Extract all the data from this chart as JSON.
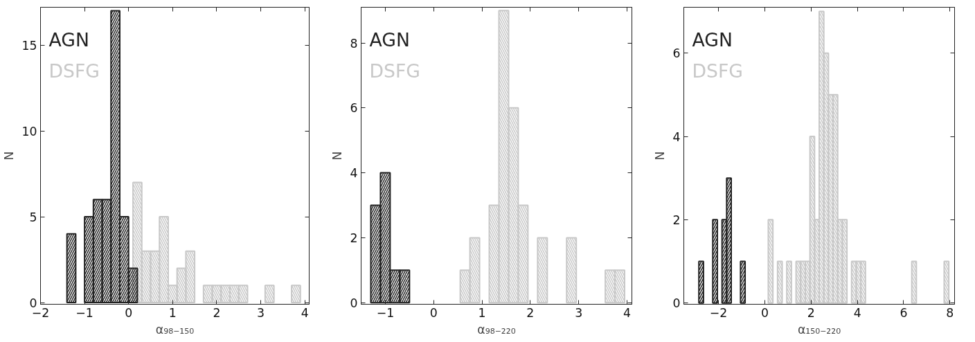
{
  "chart_data": [
    {
      "type": "bar",
      "xlabel": "α₉₈₋₁₅₀",
      "ylabel": "N",
      "xlim": [
        -2,
        4.1
      ],
      "ylim": [
        -0.1,
        17.2
      ],
      "xticks": [
        -2,
        -1,
        0,
        1,
        2,
        3,
        4
      ],
      "yticks": [
        0,
        5,
        10,
        15
      ],
      "legend": "top left",
      "series": [
        {
          "name": "AGN",
          "color": "#222222",
          "x": [
            -1.3,
            -0.9,
            -0.7,
            -0.5,
            -0.3,
            -0.1,
            0.1
          ],
          "values": [
            4,
            5,
            6,
            6,
            17,
            5,
            2
          ]
        },
        {
          "name": "DSFG",
          "color": "#c8c8c8",
          "x": [
            0.2,
            0.4,
            0.6,
            0.8,
            1.0,
            1.2,
            1.4,
            1.8,
            2.0,
            2.2,
            2.4,
            2.6,
            3.2,
            3.8
          ],
          "values": [
            7,
            3,
            3,
            5,
            1,
            2,
            3,
            1,
            1,
            1,
            1,
            1,
            1,
            1
          ]
        }
      ]
    },
    {
      "type": "bar",
      "xlabel": "α₉₈₋₂₂₀",
      "ylabel": "N",
      "xlim": [
        -1.5,
        4.1
      ],
      "ylim": [
        -0.05,
        9.1
      ],
      "xticks": [
        -1,
        0,
        1,
        2,
        3,
        4
      ],
      "yticks": [
        0,
        2,
        4,
        6,
        8
      ],
      "legend": "top left",
      "series": [
        {
          "name": "AGN",
          "color": "#222222",
          "x": [
            -1.2,
            -1.0,
            -0.8,
            -0.6
          ],
          "values": [
            3,
            4,
            1,
            1
          ]
        },
        {
          "name": "DSFG",
          "color": "#c8c8c8",
          "x": [
            0.65,
            0.85,
            1.25,
            1.45,
            1.65,
            1.85,
            2.25,
            2.85,
            3.65,
            3.85
          ],
          "values": [
            1,
            2,
            3,
            9,
            6,
            3,
            2,
            2,
            1,
            1
          ]
        }
      ]
    },
    {
      "type": "bar",
      "xlabel": "α₁₅₀₋₂₂₀",
      "ylabel": "N",
      "xlim": [
        -3.5,
        8.2
      ],
      "ylim": [
        -0.03,
        7.1
      ],
      "xticks": [
        -2,
        0,
        2,
        4,
        6,
        8
      ],
      "yticks": [
        0,
        2,
        4,
        6
      ],
      "legend": "top left",
      "series": [
        {
          "name": "AGN",
          "color": "#222222",
          "x": [
            -2.75,
            -2.15,
            -1.75,
            -1.55,
            -0.95
          ],
          "values": [
            1,
            2,
            2,
            3,
            1
          ]
        },
        {
          "name": "DSFG",
          "color": "#c8c8c8",
          "x": [
            0.25,
            0.65,
            1.05,
            1.45,
            1.65,
            1.85,
            2.05,
            2.25,
            2.45,
            2.65,
            2.85,
            3.05,
            3.25,
            3.45,
            3.85,
            4.05,
            4.25,
            6.45,
            7.85
          ],
          "values": [
            2,
            1,
            1,
            1,
            1,
            1,
            4,
            2,
            7,
            6,
            5,
            5,
            2,
            2,
            1,
            1,
            1,
            1,
            1
          ]
        }
      ]
    }
  ]
}
